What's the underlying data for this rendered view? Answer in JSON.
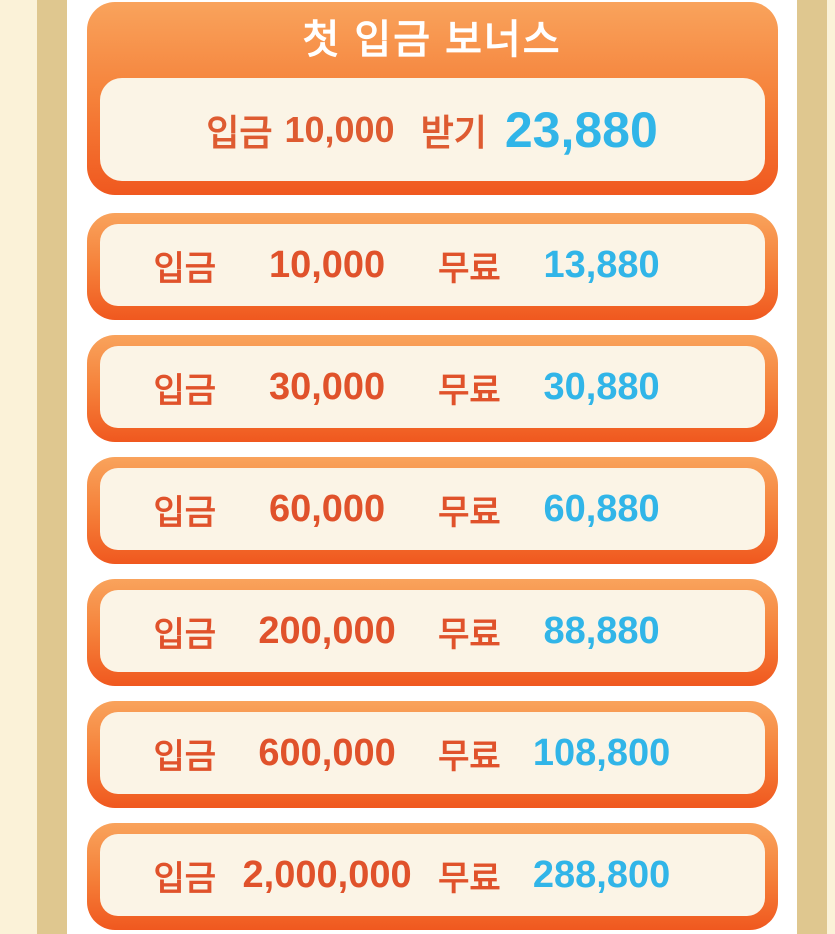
{
  "header": {
    "title": "첫 입금 보너스",
    "claim": {
      "deposit_label": "입금",
      "deposit_amount": "10,000",
      "action_label": "받기",
      "bonus_amount": "23,880"
    }
  },
  "tiers": {
    "deposit_label": "입금",
    "free_label": "무료",
    "rows": [
      {
        "deposit": "10,000",
        "bonus": "13,880"
      },
      {
        "deposit": "30,000",
        "bonus": "30,880"
      },
      {
        "deposit": "60,000",
        "bonus": "60,880"
      },
      {
        "deposit": "200,000",
        "bonus": "88,880"
      },
      {
        "deposit": "600,000",
        "bonus": "108,800"
      },
      {
        "deposit": "2,000,000",
        "bonus": "288,800"
      }
    ]
  },
  "colors": {
    "card_gradient_top": "#F9A35C",
    "card_gradient_bottom": "#F0581F",
    "inner_panel": "#FBF4E6",
    "orange_text": "#E0522B",
    "cyan_text": "#31B5E8",
    "edge_cream": "#FBF2D8",
    "edge_tan": "#DFC78F",
    "title_text": "#FFFFFF"
  }
}
